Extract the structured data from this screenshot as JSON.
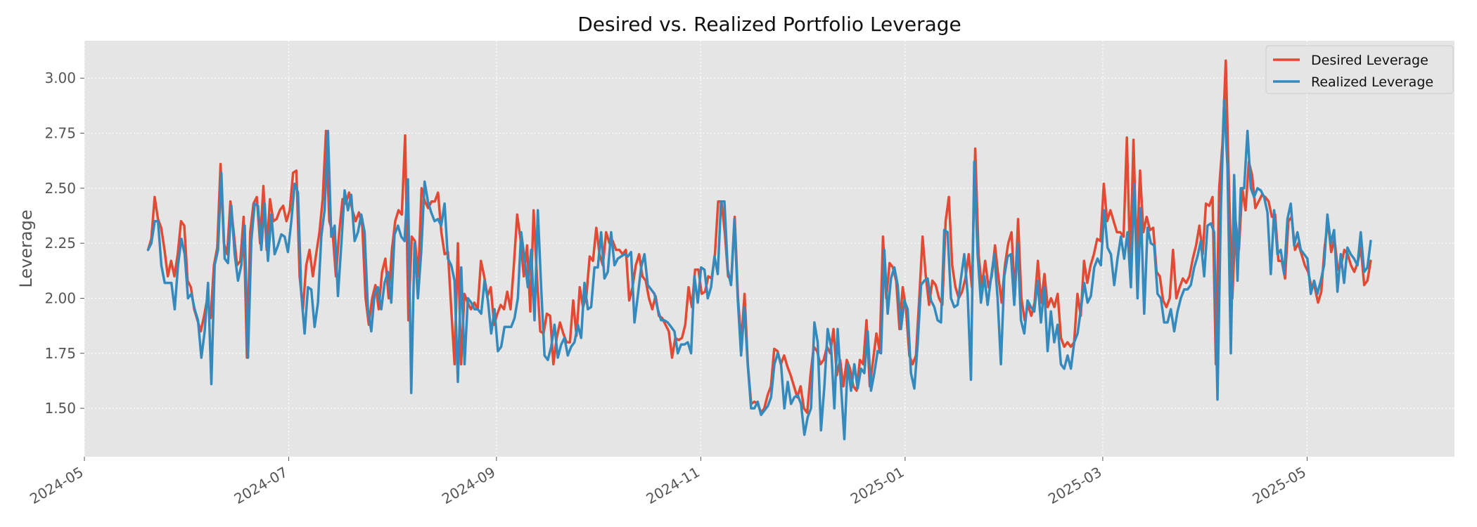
{
  "chart_data": {
    "type": "line",
    "title": "Desired vs. Realized Portfolio Leverage",
    "xlabel": "",
    "ylabel": "Leverage",
    "x_range": [
      "2024-05-01",
      "2025-06-14"
    ],
    "ylim": [
      1.28,
      3.17
    ],
    "x_ticks": [
      "2024-05",
      "2024-07",
      "2024-09",
      "2024-11",
      "2025-01",
      "2025-03",
      "2025-05"
    ],
    "y_ticks": [
      "1.50",
      "1.75",
      "2.00",
      "2.25",
      "2.50",
      "2.75",
      "3.00"
    ],
    "grid": true,
    "legend_position": "top-right",
    "x_start": "2024-05-20",
    "x_end": "2025-05-20",
    "series": [
      {
        "name": "Desired Leverage",
        "color": "#E24A33",
        "values": [
          2.22,
          2.27,
          2.46,
          2.36,
          2.32,
          2.22,
          2.1,
          2.17,
          2.1,
          2.2,
          2.35,
          2.33,
          2.08,
          2.05,
          1.95,
          1.9,
          1.85,
          1.92,
          2.0,
          1.91,
          2.15,
          2.23,
          2.61,
          2.25,
          2.2,
          2.44,
          2.3,
          2.15,
          2.17,
          2.37,
          1.73,
          2.3,
          2.43,
          2.46,
          2.25,
          2.51,
          2.22,
          2.45,
          2.35,
          2.36,
          2.4,
          2.42,
          2.35,
          2.4,
          2.57,
          2.58,
          2.1,
          1.95,
          2.15,
          2.22,
          2.1,
          2.2,
          2.3,
          2.45,
          2.76,
          2.35,
          2.3,
          2.1,
          2.3,
          2.45,
          2.43,
          2.48,
          2.4,
          2.35,
          2.39,
          2.33,
          2.0,
          1.88,
          2.0,
          2.06,
          1.95,
          2.12,
          2.18,
          2.0,
          2.22,
          2.35,
          2.4,
          2.38,
          2.74,
          1.9,
          2.28,
          2.26,
          2.1,
          2.5,
          2.44,
          2.41,
          2.44,
          2.44,
          2.48,
          2.3,
          2.2,
          2.21,
          1.95,
          1.7,
          2.25,
          1.7,
          2.02,
          1.98,
          1.95,
          1.98,
          1.95,
          2.17,
          2.1,
          2.01,
          2.05,
          1.88,
          1.93,
          1.97,
          1.95,
          2.03,
          1.95,
          2.15,
          2.38,
          2.27,
          2.1,
          2.24,
          1.94,
          2.4,
          2.1,
          1.85,
          1.84,
          1.93,
          1.92,
          1.7,
          1.82,
          1.89,
          1.84,
          1.8,
          1.8,
          1.99,
          1.83,
          2.05,
          1.96,
          2.01,
          2.19,
          2.17,
          2.32,
          2.2,
          2.15,
          2.3,
          2.25,
          2.26,
          2.22,
          2.22,
          2.2,
          2.22,
          1.99,
          2.05,
          2.15,
          2.2,
          2.1,
          2.08,
          2.0,
          1.95,
          2.01,
          1.92,
          1.91,
          1.88,
          1.85,
          1.73,
          1.82,
          1.81,
          1.82,
          1.88,
          2.05,
          1.96,
          2.13,
          2.13,
          2.02,
          2.03,
          2.1,
          2.09,
          2.2,
          2.44,
          2.44,
          2.3,
          2.1,
          2.08,
          2.37,
          2.0,
          1.8,
          2.02,
          1.7,
          1.52,
          1.53,
          1.52,
          1.48,
          1.5,
          1.56,
          1.6,
          1.77,
          1.76,
          1.7,
          1.74,
          1.69,
          1.65,
          1.6,
          1.55,
          1.6,
          1.5,
          1.48,
          1.65,
          1.78,
          1.76,
          1.7,
          1.72,
          1.78,
          1.75,
          1.86,
          1.65,
          1.72,
          1.6,
          1.72,
          1.68,
          1.6,
          1.58,
          1.72,
          1.7,
          1.9,
          1.6,
          1.72,
          1.84,
          1.76,
          2.28,
          2.0,
          2.16,
          2.14,
          2.08,
          1.86,
          2.05,
          1.95,
          1.74,
          1.7,
          1.74,
          2.0,
          2.28,
          2.1,
          1.97,
          2.08,
          2.06,
          2.0,
          1.97,
          2.35,
          2.46,
          2.15,
          2.05,
          2.0,
          2.03,
          2.09,
          2.2,
          2.05,
          2.68,
          2.2,
          2.05,
          2.17,
          2.05,
          2.1,
          2.24,
          2.1,
          1.98,
          2.15,
          2.25,
          2.3,
          2.01,
          2.36,
          2.0,
          1.9,
          1.97,
          1.92,
          1.98,
          2.17,
          1.98,
          2.11,
          1.96,
          2.0,
          1.96,
          2.02,
          1.82,
          1.78,
          1.8,
          1.78,
          1.8,
          2.02,
          1.92,
          2.17,
          2.07,
          2.15,
          2.2,
          2.27,
          2.26,
          2.52,
          2.35,
          2.4,
          2.35,
          2.3,
          2.3,
          2.28,
          2.73,
          2.15,
          2.72,
          2.18,
          2.58,
          2.3,
          2.37,
          2.31,
          2.32,
          2.12,
          2.1,
          1.99,
          1.96,
          2.0,
          2.22,
          2.0,
          2.05,
          2.09,
          2.07,
          2.1,
          2.18,
          2.24,
          2.33,
          2.2,
          2.43,
          2.42,
          2.46,
          1.7,
          2.5,
          2.7,
          3.08,
          2.5,
          2.0,
          2.35,
          2.22,
          2.5,
          2.4,
          2.62,
          2.56,
          2.41,
          2.44,
          2.47,
          2.46,
          2.44,
          2.37,
          2.38,
          2.17,
          2.17,
          2.09,
          2.35,
          2.37,
          2.22,
          2.25,
          2.2,
          2.15,
          2.12,
          2.05,
          2.05,
          1.98,
          2.03,
          2.23,
          2.35,
          2.21,
          2.27,
          2.13,
          2.15,
          2.22,
          2.2,
          2.15,
          2.12,
          2.16,
          2.23,
          2.06,
          2.08,
          2.17
        ]
      },
      {
        "name": "Realized Leverage",
        "color": "#348ABD",
        "values": [
          2.22,
          2.25,
          2.35,
          2.35,
          2.15,
          2.07,
          2.07,
          2.07,
          1.95,
          2.15,
          2.27,
          2.2,
          2.0,
          2.02,
          1.95,
          1.9,
          1.73,
          1.85,
          2.07,
          1.61,
          2.15,
          2.22,
          2.57,
          2.18,
          2.16,
          2.42,
          2.2,
          2.08,
          2.15,
          2.33,
          1.73,
          2.26,
          2.43,
          2.42,
          2.22,
          2.43,
          2.17,
          2.38,
          2.2,
          2.24,
          2.29,
          2.28,
          2.21,
          2.35,
          2.52,
          2.48,
          2.02,
          1.84,
          2.05,
          2.04,
          1.87,
          1.98,
          2.28,
          2.4,
          2.76,
          2.28,
          2.33,
          2.01,
          2.24,
          2.49,
          2.4,
          2.47,
          2.26,
          2.3,
          2.38,
          2.3,
          1.95,
          1.85,
          2.02,
          2.05,
          1.95,
          2.07,
          2.12,
          1.98,
          2.29,
          2.33,
          2.28,
          2.26,
          2.54,
          1.57,
          2.25,
          2.0,
          2.21,
          2.53,
          2.44,
          2.39,
          2.35,
          2.36,
          2.33,
          2.43,
          2.18,
          2.15,
          2.08,
          1.62,
          2.14,
          1.7,
          2.0,
          1.98,
          1.95,
          1.95,
          1.93,
          2.08,
          1.99,
          1.84,
          1.95,
          1.76,
          1.78,
          1.87,
          1.87,
          1.87,
          1.91,
          2.0,
          2.3,
          2.18,
          2.05,
          2.22,
          1.9,
          2.4,
          2.05,
          1.74,
          1.72,
          1.78,
          1.88,
          1.73,
          1.79,
          1.82,
          1.74,
          1.78,
          1.8,
          1.88,
          1.82,
          2.07,
          1.95,
          1.96,
          2.14,
          2.14,
          2.3,
          2.09,
          2.12,
          2.3,
          2.15,
          2.18,
          2.19,
          2.2,
          2.19,
          2.21,
          1.89,
          2.01,
          2.14,
          2.2,
          2.06,
          2.04,
          2.02,
          1.95,
          1.9,
          1.9,
          1.89,
          1.87,
          1.85,
          1.75,
          1.79,
          1.79,
          1.8,
          1.75,
          2.1,
          1.98,
          2.14,
          2.13,
          2.0,
          2.05,
          2.19,
          2.11,
          2.44,
          2.44,
          2.13,
          2.06,
          2.36,
          2.0,
          1.74,
          1.96,
          1.7,
          1.5,
          1.5,
          1.53,
          1.47,
          1.49,
          1.51,
          1.55,
          1.7,
          1.75,
          1.7,
          1.5,
          1.62,
          1.52,
          1.55,
          1.56,
          1.52,
          1.38,
          1.46,
          1.5,
          1.89,
          1.8,
          1.4,
          1.6,
          1.86,
          1.78,
          1.5,
          1.86,
          1.6,
          1.36,
          1.7,
          1.58,
          1.7,
          1.59,
          1.68,
          1.66,
          1.85,
          1.58,
          1.66,
          1.76,
          1.75,
          2.22,
          1.93,
          2.09,
          2.14,
          2.06,
          1.86,
          1.99,
          1.95,
          1.66,
          1.59,
          1.79,
          2.06,
          2.08,
          2.09,
          1.99,
          1.96,
          1.9,
          1.89,
          2.31,
          2.3,
          2.0,
          1.96,
          1.97,
          2.09,
          2.2,
          2.02,
          1.63,
          2.62,
          2.2,
          1.98,
          2.1,
          1.97,
          2.09,
          2.2,
          2.0,
          1.7,
          2.1,
          2.19,
          2.2,
          1.97,
          2.25,
          1.9,
          1.84,
          1.99,
          1.96,
          1.94,
          2.08,
          1.89,
          2.05,
          1.76,
          1.94,
          1.8,
          1.88,
          1.7,
          1.68,
          1.74,
          1.68,
          1.8,
          1.84,
          1.95,
          2.07,
          1.98,
          2.01,
          2.14,
          2.18,
          2.15,
          2.4,
          2.23,
          2.2,
          2.06,
          2.18,
          2.28,
          2.18,
          2.3,
          2.05,
          2.52,
          2.0,
          2.41,
          1.93,
          2.32,
          2.25,
          2.24,
          2.02,
          2.0,
          1.89,
          1.89,
          1.95,
          1.85,
          1.94,
          2.0,
          2.04,
          2.04,
          2.06,
          2.14,
          2.19,
          2.26,
          2.1,
          2.33,
          2.34,
          2.3,
          1.54,
          2.4,
          2.9,
          2.6,
          1.75,
          2.56,
          2.08,
          2.5,
          2.5,
          2.76,
          2.5,
          2.46,
          2.5,
          2.49,
          2.46,
          2.39,
          2.11,
          2.4,
          2.2,
          2.22,
          2.11,
          2.36,
          2.43,
          2.24,
          2.3,
          2.22,
          2.2,
          2.18,
          2.02,
          2.08,
          2.02,
          2.08,
          2.15,
          2.38,
          2.25,
          2.31,
          2.03,
          2.2,
          2.07,
          2.23,
          2.2,
          2.18,
          2.15,
          2.3,
          2.12,
          2.14,
          2.26
        ]
      }
    ]
  }
}
